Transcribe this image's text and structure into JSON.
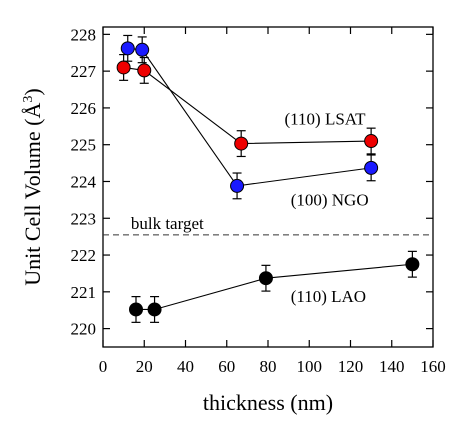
{
  "chart_data": {
    "type": "scatter",
    "xlabel": "thickness (nm)",
    "ylabel": "Unit Cell Volume (Å³)",
    "ylabel_text": "Unit Cell Volume (Å",
    "ylabel_sup": "3",
    "ylabel_close": ")",
    "xlim": [
      0,
      160
    ],
    "ylim": [
      219.5,
      228.2
    ],
    "xticks": [
      0,
      20,
      40,
      60,
      80,
      100,
      120,
      140,
      160
    ],
    "yticks": [
      220,
      221,
      222,
      223,
      224,
      225,
      226,
      227,
      228
    ],
    "grid": false,
    "reference_line": {
      "y": 222.55,
      "label": "bulk target",
      "style": "dashed"
    },
    "series": [
      {
        "name": "(110) LSAT",
        "color": "#ee0000",
        "x": [
          10,
          20,
          67,
          130
        ],
        "y": [
          227.1,
          227.02,
          225.03,
          225.1
        ],
        "err": [
          0.35,
          0.35,
          0.35,
          0.35
        ]
      },
      {
        "name": "(100) NGO",
        "color": "#1a1aff",
        "x": [
          12,
          19,
          65,
          130
        ],
        "y": [
          227.62,
          227.58,
          223.88,
          224.37
        ],
        "err": [
          0.35,
          0.35,
          0.35,
          0.35
        ]
      },
      {
        "name": "(110) LAO",
        "color": "#000000",
        "x": [
          16,
          25,
          79,
          150
        ],
        "y": [
          220.52,
          220.52,
          221.37,
          221.75
        ],
        "err": [
          0.35,
          0.35,
          0.35,
          0.35
        ]
      }
    ]
  }
}
